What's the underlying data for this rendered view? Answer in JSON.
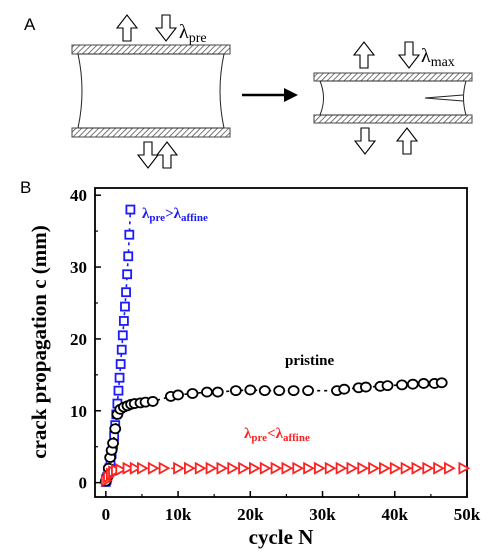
{
  "panel_a": {
    "label": "A",
    "lambda_pre_label": "λ",
    "lambda_pre_sub": "pre",
    "lambda_max_label": "λ",
    "lambda_max_sub": "max"
  },
  "panel_b": {
    "label": "B"
  },
  "chart_data": {
    "type": "scatter",
    "title": "",
    "xlabel": "cycle N",
    "ylabel": "crack propagation c (mm)",
    "xlim": [
      -1500,
      50000
    ],
    "ylim": [
      -2,
      41
    ],
    "xticks": [
      0,
      10000,
      20000,
      30000,
      40000,
      50000
    ],
    "xtick_labels": [
      "0",
      "10k",
      "20k",
      "30k",
      "40k",
      "50k"
    ],
    "yticks": [
      0,
      10,
      20,
      30,
      40
    ],
    "ytick_labels": [
      "0",
      "10",
      "20",
      "30",
      "40"
    ],
    "grid": false,
    "legend": "none",
    "series": [
      {
        "label_main": "λ",
        "label_sub1": "pre",
        "label_mid": ">λ",
        "label_sub2": "affine",
        "color": "#1a1aff",
        "marker": "square",
        "x": [
          0,
          100,
          200,
          350,
          500,
          650,
          800,
          1000,
          1150,
          1300,
          1450,
          1600,
          1750,
          1900,
          2050,
          2200,
          2350,
          2500,
          2650,
          2800,
          2950,
          3100,
          3250,
          3400
        ],
        "y": [
          0.1,
          0.4,
          0.8,
          1.3,
          2,
          3,
          4,
          5.3,
          6.5,
          8,
          9.5,
          11,
          12.8,
          14.6,
          16.5,
          18.5,
          20.5,
          22.5,
          24.5,
          26.5,
          29,
          31.5,
          34.5,
          38
        ]
      },
      {
        "label_main": "pristine",
        "color": "#000000",
        "marker": "circle",
        "x": [
          0,
          200,
          400,
          600,
          800,
          1000,
          1300,
          1600,
          2000,
          2500,
          3000,
          3500,
          4000,
          4800,
          5500,
          6500,
          9000,
          10000,
          12000,
          14000,
          15500,
          18000,
          20000,
          22000,
          24000,
          26000,
          28000,
          32000,
          33000,
          35000,
          36000,
          38000,
          39000,
          41000,
          42500,
          44000,
          45500,
          46500
        ],
        "y": [
          0.2,
          0.8,
          2,
          3.5,
          4.5,
          5.5,
          7.5,
          9.5,
          10.2,
          10.5,
          10.7,
          10.9,
          11,
          11.1,
          11.2,
          11.3,
          12,
          12.2,
          12.4,
          12.6,
          12.6,
          12.8,
          12.9,
          12.8,
          12.8,
          12.8,
          12.8,
          12.8,
          13,
          13.2,
          13.3,
          13.4,
          13.5,
          13.6,
          13.7,
          13.8,
          13.8,
          13.9
        ]
      },
      {
        "label_main": "λ",
        "label_sub1": "pre",
        "label_mid": "<λ",
        "label_sub2": "affine",
        "color": "#ff2020",
        "marker": "triangle-right",
        "x": [
          0,
          300,
          700,
          1000,
          1400,
          2000,
          3000,
          4000,
          5000,
          6500,
          8000,
          10000,
          11500,
          13000,
          14500,
          16000,
          17500,
          19000,
          20500,
          22000,
          23500,
          25000,
          26500,
          28000,
          29500,
          31000,
          32500,
          34000,
          35500,
          37000,
          38500,
          40000,
          41500,
          43000,
          44500,
          46000,
          47500,
          49500
        ],
        "y": [
          0.3,
          0.8,
          1.2,
          1.5,
          1.7,
          1.8,
          2,
          2,
          2,
          2,
          2,
          2,
          2,
          2,
          2,
          2,
          2,
          2,
          2,
          2,
          2,
          2,
          2,
          2,
          2,
          2,
          2,
          2,
          2,
          2,
          2,
          2,
          2,
          2,
          2,
          2,
          2,
          2
        ]
      }
    ]
  }
}
